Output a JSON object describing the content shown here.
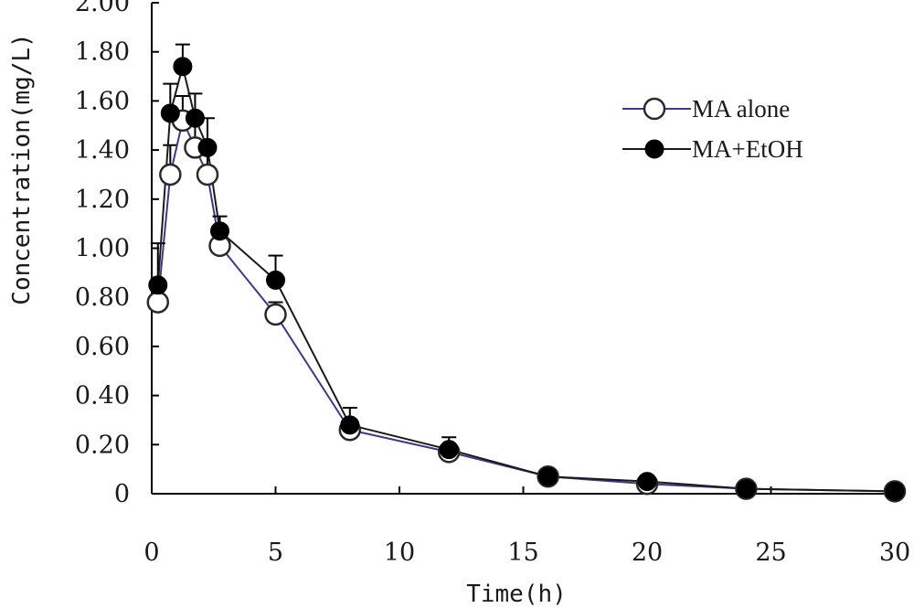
{
  "chart_data": {
    "type": "line",
    "title": "",
    "xlabel": "Time(h)",
    "ylabel": "Concentration(mg/L)",
    "xlim": [
      0,
      30
    ],
    "ylim": [
      0,
      2.0
    ],
    "x_ticks": [
      0,
      5,
      10,
      15,
      20,
      25,
      30
    ],
    "x_tick_labels": [
      "0",
      "5",
      "10",
      "15",
      "20",
      "25",
      "30"
    ],
    "y_ticks": [
      0,
      0.2,
      0.4,
      0.6,
      0.8,
      1.0,
      1.2,
      1.4,
      1.6,
      1.8,
      2.0
    ],
    "y_tick_labels": [
      "0",
      "0.20",
      "0.40",
      "0.60",
      "0.80",
      "1.00",
      "1.20",
      "1.40",
      "1.60",
      "1.80",
      "2.00"
    ],
    "grid": false,
    "legend_position": "top-right",
    "series": [
      {
        "name": "MA alone",
        "marker": "open-circle",
        "line_color": "#3a3a8c",
        "x": [
          0.25,
          0.75,
          1.25,
          1.75,
          2.25,
          2.75,
          5,
          8,
          12,
          16,
          20,
          24,
          30
        ],
        "y": [
          0.78,
          1.3,
          1.52,
          1.41,
          1.3,
          1.01,
          0.73,
          0.26,
          0.17,
          0.07,
          0.04,
          0.02,
          0.01
        ],
        "error": [
          0,
          0.12,
          0.1,
          0.1,
          0.12,
          0,
          0.05,
          0,
          0,
          0,
          0,
          0,
          0
        ]
      },
      {
        "name": "MA+EtOH",
        "marker": "filled-circle",
        "line_color": "#1a1a1a",
        "x": [
          0.25,
          0.75,
          1.25,
          1.75,
          2.25,
          2.75,
          5,
          8,
          12,
          16,
          20,
          24,
          30
        ],
        "y": [
          0.85,
          1.55,
          1.74,
          1.53,
          1.41,
          1.07,
          0.87,
          0.28,
          0.18,
          0.07,
          0.05,
          0.02,
          0.01
        ],
        "error": [
          0.17,
          0.12,
          0.09,
          0.1,
          0.12,
          0.06,
          0.1,
          0.07,
          0.05,
          0,
          0,
          0,
          0
        ]
      }
    ]
  }
}
